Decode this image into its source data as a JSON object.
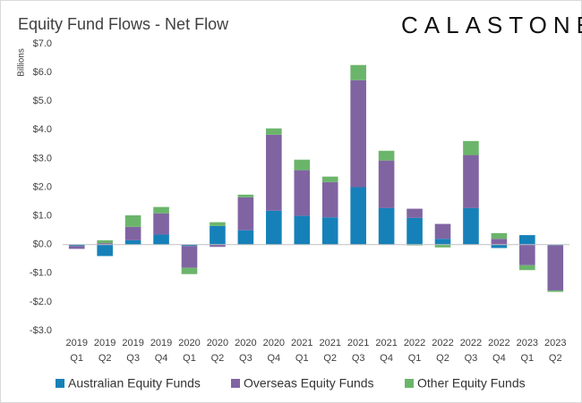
{
  "chart_data": {
    "type": "stacked_bar",
    "title": "Equity Fund Flows - Net Flow",
    "brand": "CALASTONE",
    "y_label": "Billions",
    "categories": [
      [
        "2019",
        "Q1"
      ],
      [
        "2019",
        "Q2"
      ],
      [
        "2019",
        "Q3"
      ],
      [
        "2019",
        "Q4"
      ],
      [
        "2020",
        "Q1"
      ],
      [
        "2020",
        "Q2"
      ],
      [
        "2020",
        "Q3"
      ],
      [
        "2020",
        "Q4"
      ],
      [
        "2021",
        "Q1"
      ],
      [
        "2021",
        "Q2"
      ],
      [
        "2021",
        "Q3"
      ],
      [
        "2021",
        "Q4"
      ],
      [
        "2022",
        "Q1"
      ],
      [
        "2022",
        "Q2"
      ],
      [
        "2022",
        "Q3"
      ],
      [
        "2022",
        "Q4"
      ],
      [
        "2023",
        "Q1"
      ],
      [
        "2023",
        "Q2"
      ]
    ],
    "series": [
      {
        "name": "Australian Equity Funds",
        "color": "#1681b9",
        "values": [
          -0.05,
          -0.4,
          0.15,
          0.35,
          -0.05,
          0.65,
          0.5,
          1.18,
          1.0,
          0.95,
          2.0,
          1.27,
          0.93,
          0.2,
          1.27,
          -0.12,
          0.33,
          -0.03
        ]
      },
      {
        "name": "Overseas Equity Funds",
        "color": "#8064a2",
        "values": [
          -0.1,
          0.05,
          0.47,
          0.74,
          -0.76,
          -0.08,
          1.15,
          2.65,
          1.59,
          1.23,
          3.73,
          1.66,
          0.32,
          0.52,
          1.85,
          0.2,
          -0.72,
          -1.57
        ]
      },
      {
        "name": "Other Equity Funds",
        "color": "#6bb56b",
        "values": [
          0,
          0.1,
          0.4,
          0.22,
          -0.22,
          0.13,
          0.09,
          0.22,
          0.37,
          0.19,
          0.53,
          0.34,
          -0.03,
          -0.1,
          0.49,
          0.2,
          -0.17,
          -0.05
        ]
      }
    ],
    "ylim": [
      -3,
      7
    ],
    "yticks": [
      {
        "value": 7,
        "label": "$7.0"
      },
      {
        "value": 6,
        "label": "$6.0"
      },
      {
        "value": 5,
        "label": "$5.0"
      },
      {
        "value": 4,
        "label": "$4.0"
      },
      {
        "value": 3,
        "label": "$3.0"
      },
      {
        "value": 2,
        "label": "$2.0"
      },
      {
        "value": 1,
        "label": "$1.0"
      },
      {
        "value": 0,
        "label": "$0.0"
      },
      {
        "value": -1,
        "label": "-$1.0"
      },
      {
        "value": -2,
        "label": "-$2.0"
      },
      {
        "value": -3,
        "label": "-$3.0"
      }
    ],
    "grid": false,
    "legend": "bottom"
  }
}
